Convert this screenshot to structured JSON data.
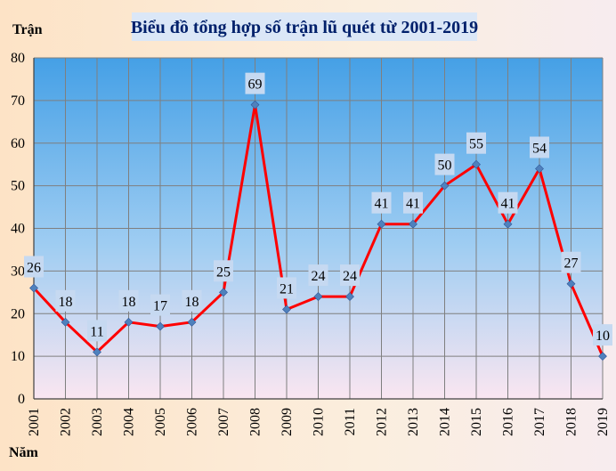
{
  "chart_data": {
    "type": "line",
    "title": "Biểu đồ tổng hợp số trận lũ quét từ 2001-2019",
    "ylabel": "Trận",
    "xlabel": "Năm",
    "ylim": [
      0,
      80
    ],
    "yticks": [
      0,
      10,
      20,
      30,
      40,
      50,
      60,
      70,
      80
    ],
    "grid": true,
    "categories": [
      "2001",
      "2002",
      "2003",
      "2004",
      "2005",
      "2006",
      "2007",
      "2008",
      "2009",
      "2010",
      "2011",
      "2012",
      "2013",
      "2014",
      "2015",
      "2016",
      "2017",
      "2018",
      "2019"
    ],
    "series": [
      {
        "values": [
          26,
          18,
          11,
          18,
          17,
          18,
          25,
          69,
          21,
          24,
          24,
          41,
          41,
          50,
          55,
          41,
          54,
          27,
          10
        ]
      }
    ],
    "colors": {
      "line": "#ff0000",
      "marker": "#4f81bd",
      "label_box": "#c6d9f1",
      "plot_top": "#4aa3e6",
      "plot_bottom": "#f7e4f0",
      "title_box": "#dbe7f7"
    }
  }
}
